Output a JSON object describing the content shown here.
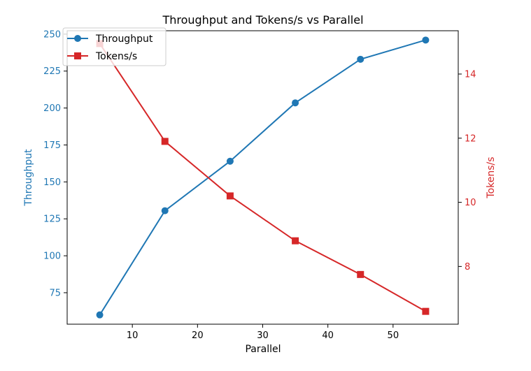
{
  "chart_data": {
    "type": "line",
    "title": "Throughput and Tokens/s vs Parallel",
    "xlabel": "Parallel",
    "x": [
      5,
      15,
      25,
      35,
      45,
      55
    ],
    "xlim": [
      0.0,
      60.0
    ],
    "x_ticks": [
      10,
      20,
      30,
      40,
      50
    ],
    "x_tick_labels": [
      "10",
      "20",
      "30",
      "40",
      "50"
    ],
    "grid": false,
    "legend_position": "top-left",
    "series": [
      {
        "name": "Throughput",
        "axis": "left",
        "color": "#1f77b4",
        "marker": "circle",
        "ylabel": "Throughput",
        "values": [
          60,
          130.5,
          164,
          203.5,
          233,
          246
        ],
        "ylim": [
          53.7,
          252.3
        ],
        "ticks": [
          75,
          100,
          125,
          150,
          175,
          200,
          225,
          250
        ],
        "tick_labels": [
          "75",
          "100",
          "125",
          "150",
          "175",
          "200",
          "225",
          "250"
        ]
      },
      {
        "name": "Tokens/s",
        "axis": "right",
        "color": "#d62728",
        "marker": "square",
        "ylabel": "Tokens/s",
        "values": [
          14.95,
          11.9,
          10.2,
          8.8,
          7.75,
          6.6
        ],
        "ylim": [
          6.2,
          15.35
        ],
        "ticks": [
          8,
          10,
          12,
          14
        ],
        "tick_labels": [
          "8",
          "10",
          "12",
          "14"
        ]
      }
    ]
  }
}
